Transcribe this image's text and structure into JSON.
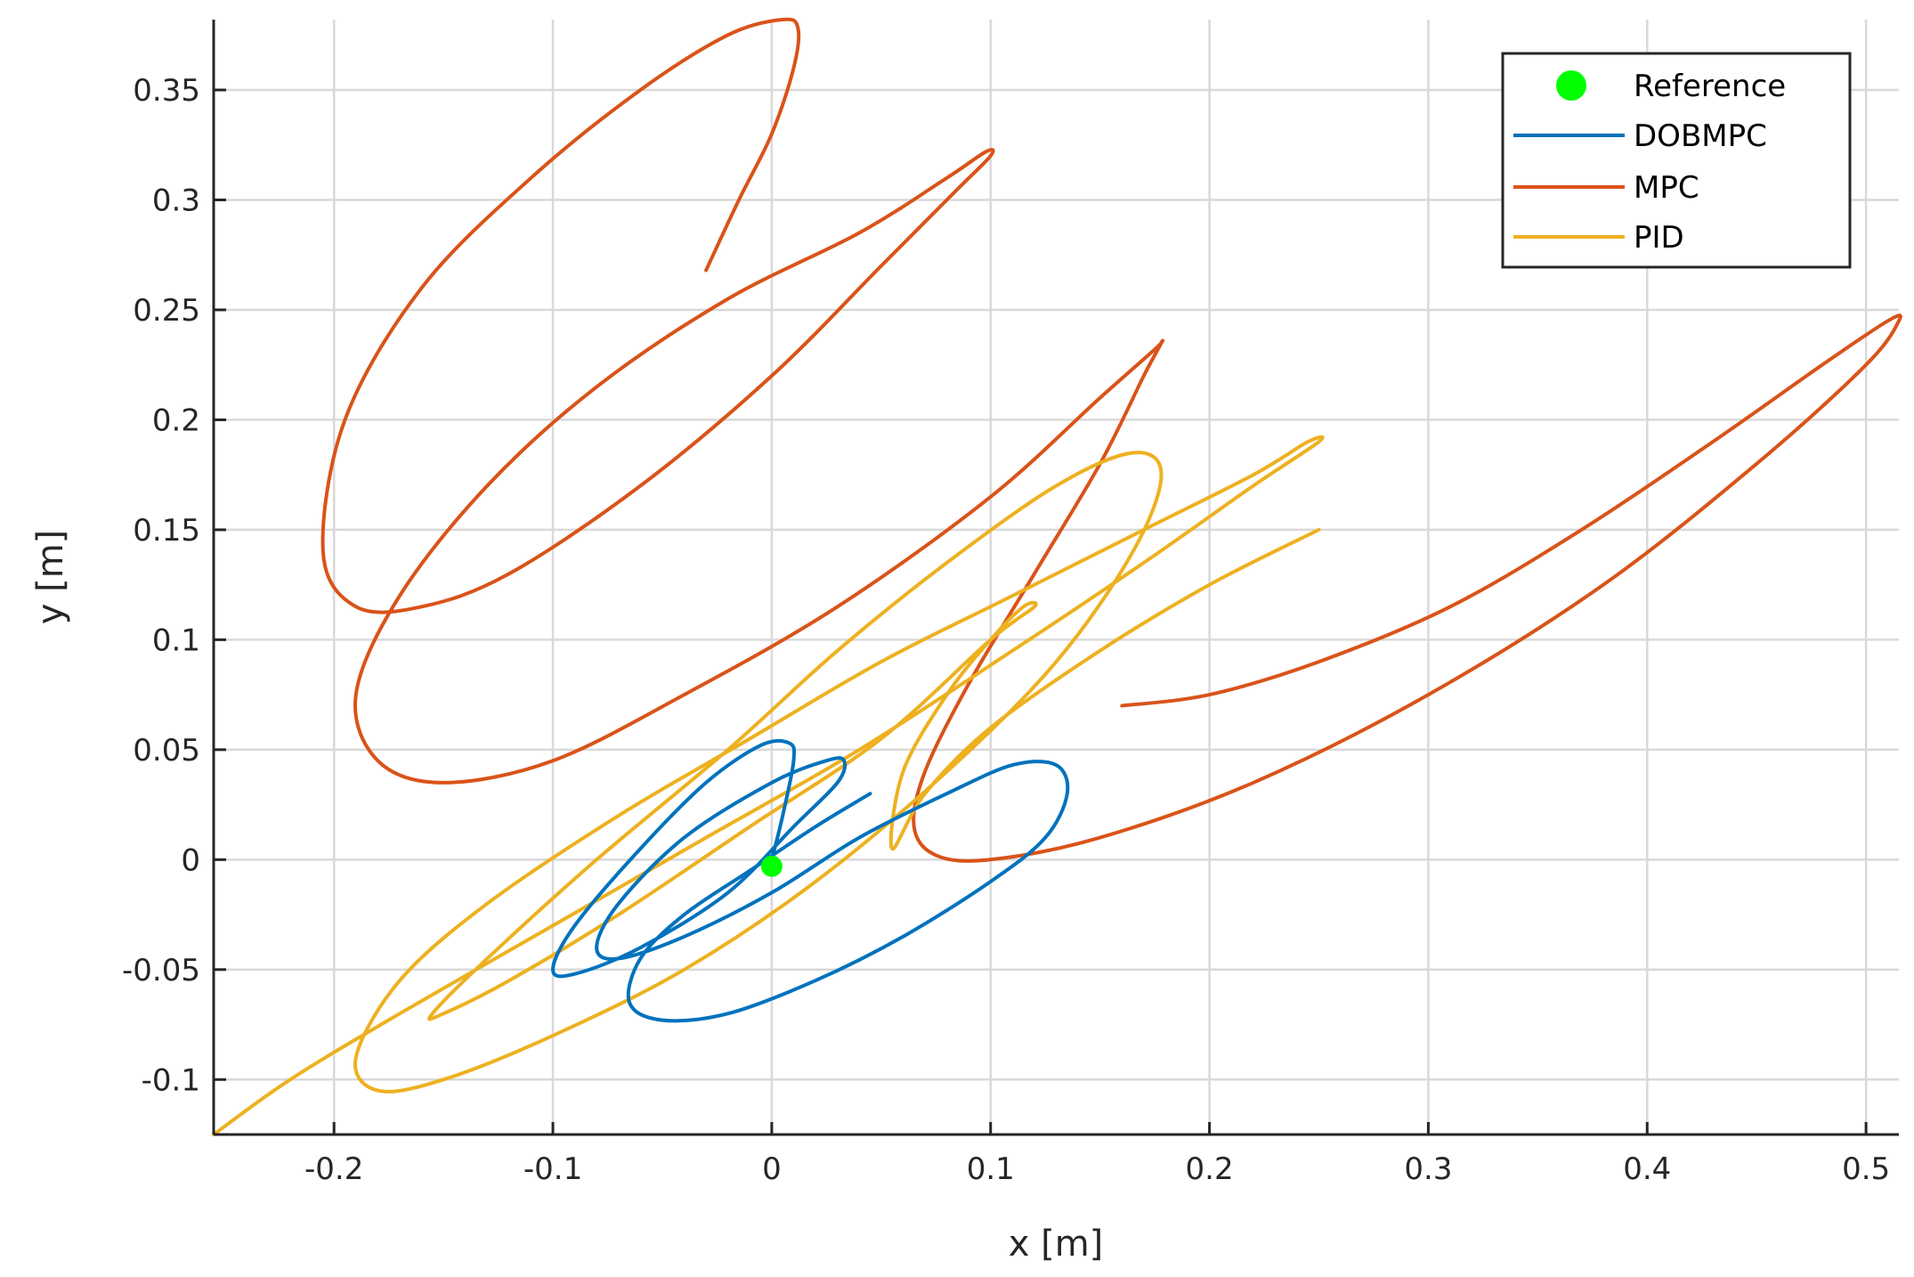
{
  "chart_data": {
    "type": "line",
    "title": "",
    "xlabel": "x [m]",
    "ylabel": "y [m]",
    "xlim": [
      -0.255,
      0.515
    ],
    "ylim": [
      -0.125,
      0.382
    ],
    "xticks": [
      -0.2,
      -0.1,
      0,
      0.1,
      0.2,
      0.3,
      0.4,
      0.5
    ],
    "xtick_labels": [
      "-0.2",
      "-0.1",
      "0",
      "0.1",
      "0.2",
      "0.3",
      "0.4",
      "0.5"
    ],
    "yticks": [
      -0.1,
      -0.05,
      0,
      0.05,
      0.1,
      0.15,
      0.2,
      0.25,
      0.3,
      0.35
    ],
    "ytick_labels": [
      "-0.1",
      "-0.05",
      "0",
      "0.05",
      "0.1",
      "0.15",
      "0.2",
      "0.25",
      "0.3",
      "0.35"
    ],
    "grid": true,
    "legend_position": "top-right",
    "reference": {
      "name": "Reference",
      "x": 0.0,
      "y": -0.003,
      "color": "#00ff00"
    },
    "series": [
      {
        "name": "MPC",
        "color": "#d95319",
        "x": [
          -0.03,
          -0.015,
          0.0,
          0.01,
          0.012,
          0.005,
          -0.02,
          -0.06,
          -0.11,
          -0.16,
          -0.195,
          -0.205,
          -0.19,
          -0.16,
          -0.12,
          -0.06,
          0.0,
          0.05,
          0.085,
          0.1,
          0.098,
          0.08,
          0.04,
          -0.02,
          -0.08,
          -0.13,
          -0.17,
          -0.19,
          -0.18,
          -0.15,
          -0.1,
          -0.04,
          0.03,
          0.1,
          0.15,
          0.175,
          0.178,
          0.17,
          0.15,
          0.12,
          0.09,
          0.07,
          0.065,
          0.075,
          0.1,
          0.15,
          0.22,
          0.3,
          0.38,
          0.45,
          0.5,
          0.515,
          0.51,
          0.48,
          0.43,
          0.37,
          0.31,
          0.25,
          0.2,
          0.16
        ],
        "y": [
          0.268,
          0.3,
          0.33,
          0.36,
          0.378,
          0.382,
          0.375,
          0.35,
          0.31,
          0.26,
          0.2,
          0.14,
          0.115,
          0.115,
          0.13,
          0.17,
          0.22,
          0.27,
          0.305,
          0.32,
          0.322,
          0.31,
          0.285,
          0.255,
          0.215,
          0.17,
          0.12,
          0.075,
          0.045,
          0.035,
          0.045,
          0.075,
          0.115,
          0.165,
          0.21,
          0.232,
          0.235,
          0.22,
          0.18,
          0.13,
          0.08,
          0.04,
          0.015,
          0.002,
          0.0,
          0.01,
          0.035,
          0.075,
          0.125,
          0.18,
          0.225,
          0.245,
          0.245,
          0.225,
          0.19,
          0.15,
          0.115,
          0.09,
          0.075,
          0.07
        ]
      },
      {
        "name": "PID",
        "color": "#edb120",
        "x": [
          -0.255,
          -0.22,
          -0.17,
          -0.1,
          -0.03,
          0.04,
          0.11,
          0.17,
          0.22,
          0.25,
          0.245,
          0.22,
          0.17,
          0.11,
          0.05,
          -0.01,
          -0.07,
          -0.13,
          -0.17,
          -0.19,
          -0.18,
          -0.15,
          -0.1,
          -0.04,
          0.02,
          0.08,
          0.13,
          0.165,
          0.178,
          0.165,
          0.13,
          0.08,
          0.03,
          -0.02,
          -0.08,
          -0.13,
          -0.155,
          -0.15,
          -0.12,
          -0.07,
          -0.01,
          0.05,
          0.1,
          0.12,
          0.115,
          0.1,
          0.08,
          0.06,
          0.055,
          0.07,
          0.1,
          0.15,
          0.2,
          0.25
        ],
        "y": [
          -0.125,
          -0.1,
          -0.07,
          -0.03,
          0.01,
          0.05,
          0.095,
          0.135,
          0.17,
          0.19,
          0.19,
          0.175,
          0.15,
          0.12,
          0.09,
          0.055,
          0.02,
          -0.02,
          -0.055,
          -0.09,
          -0.105,
          -0.1,
          -0.08,
          -0.05,
          -0.01,
          0.04,
          0.09,
          0.14,
          0.175,
          0.185,
          0.17,
          0.135,
          0.095,
          0.05,
          0.0,
          -0.045,
          -0.07,
          -0.07,
          -0.055,
          -0.025,
          0.015,
          0.055,
          0.1,
          0.115,
          0.115,
          0.1,
          0.075,
          0.04,
          0.005,
          0.03,
          0.06,
          0.095,
          0.125,
          0.15
        ]
      },
      {
        "name": "DOBMPC",
        "color": "#0072bd",
        "x": [
          0.0,
          0.005,
          0.01,
          0.008,
          -0.005,
          -0.03,
          -0.06,
          -0.09,
          -0.1,
          -0.09,
          -0.06,
          -0.02,
          0.01,
          0.03,
          0.033,
          0.025,
          0.0,
          -0.04,
          -0.07,
          -0.08,
          -0.07,
          -0.04,
          0.0,
          0.04,
          0.08,
          0.11,
          0.13,
          0.135,
          0.125,
          0.1,
          0.06,
          0.02,
          -0.02,
          -0.05,
          -0.065,
          -0.06,
          -0.04,
          -0.01,
          0.02,
          0.045
        ],
        "y": [
          0.0,
          0.02,
          0.045,
          0.053,
          0.052,
          0.035,
          0.005,
          -0.03,
          -0.05,
          -0.052,
          -0.04,
          -0.015,
          0.015,
          0.035,
          0.045,
          0.045,
          0.035,
          0.01,
          -0.02,
          -0.04,
          -0.045,
          -0.035,
          -0.015,
          0.01,
          0.03,
          0.043,
          0.043,
          0.03,
          0.01,
          -0.01,
          -0.035,
          -0.055,
          -0.07,
          -0.073,
          -0.065,
          -0.045,
          -0.025,
          -0.005,
          0.015,
          0.03
        ]
      }
    ]
  },
  "legend": {
    "entries": [
      "Reference",
      "DOBMPC",
      "MPC",
      "PID"
    ]
  }
}
